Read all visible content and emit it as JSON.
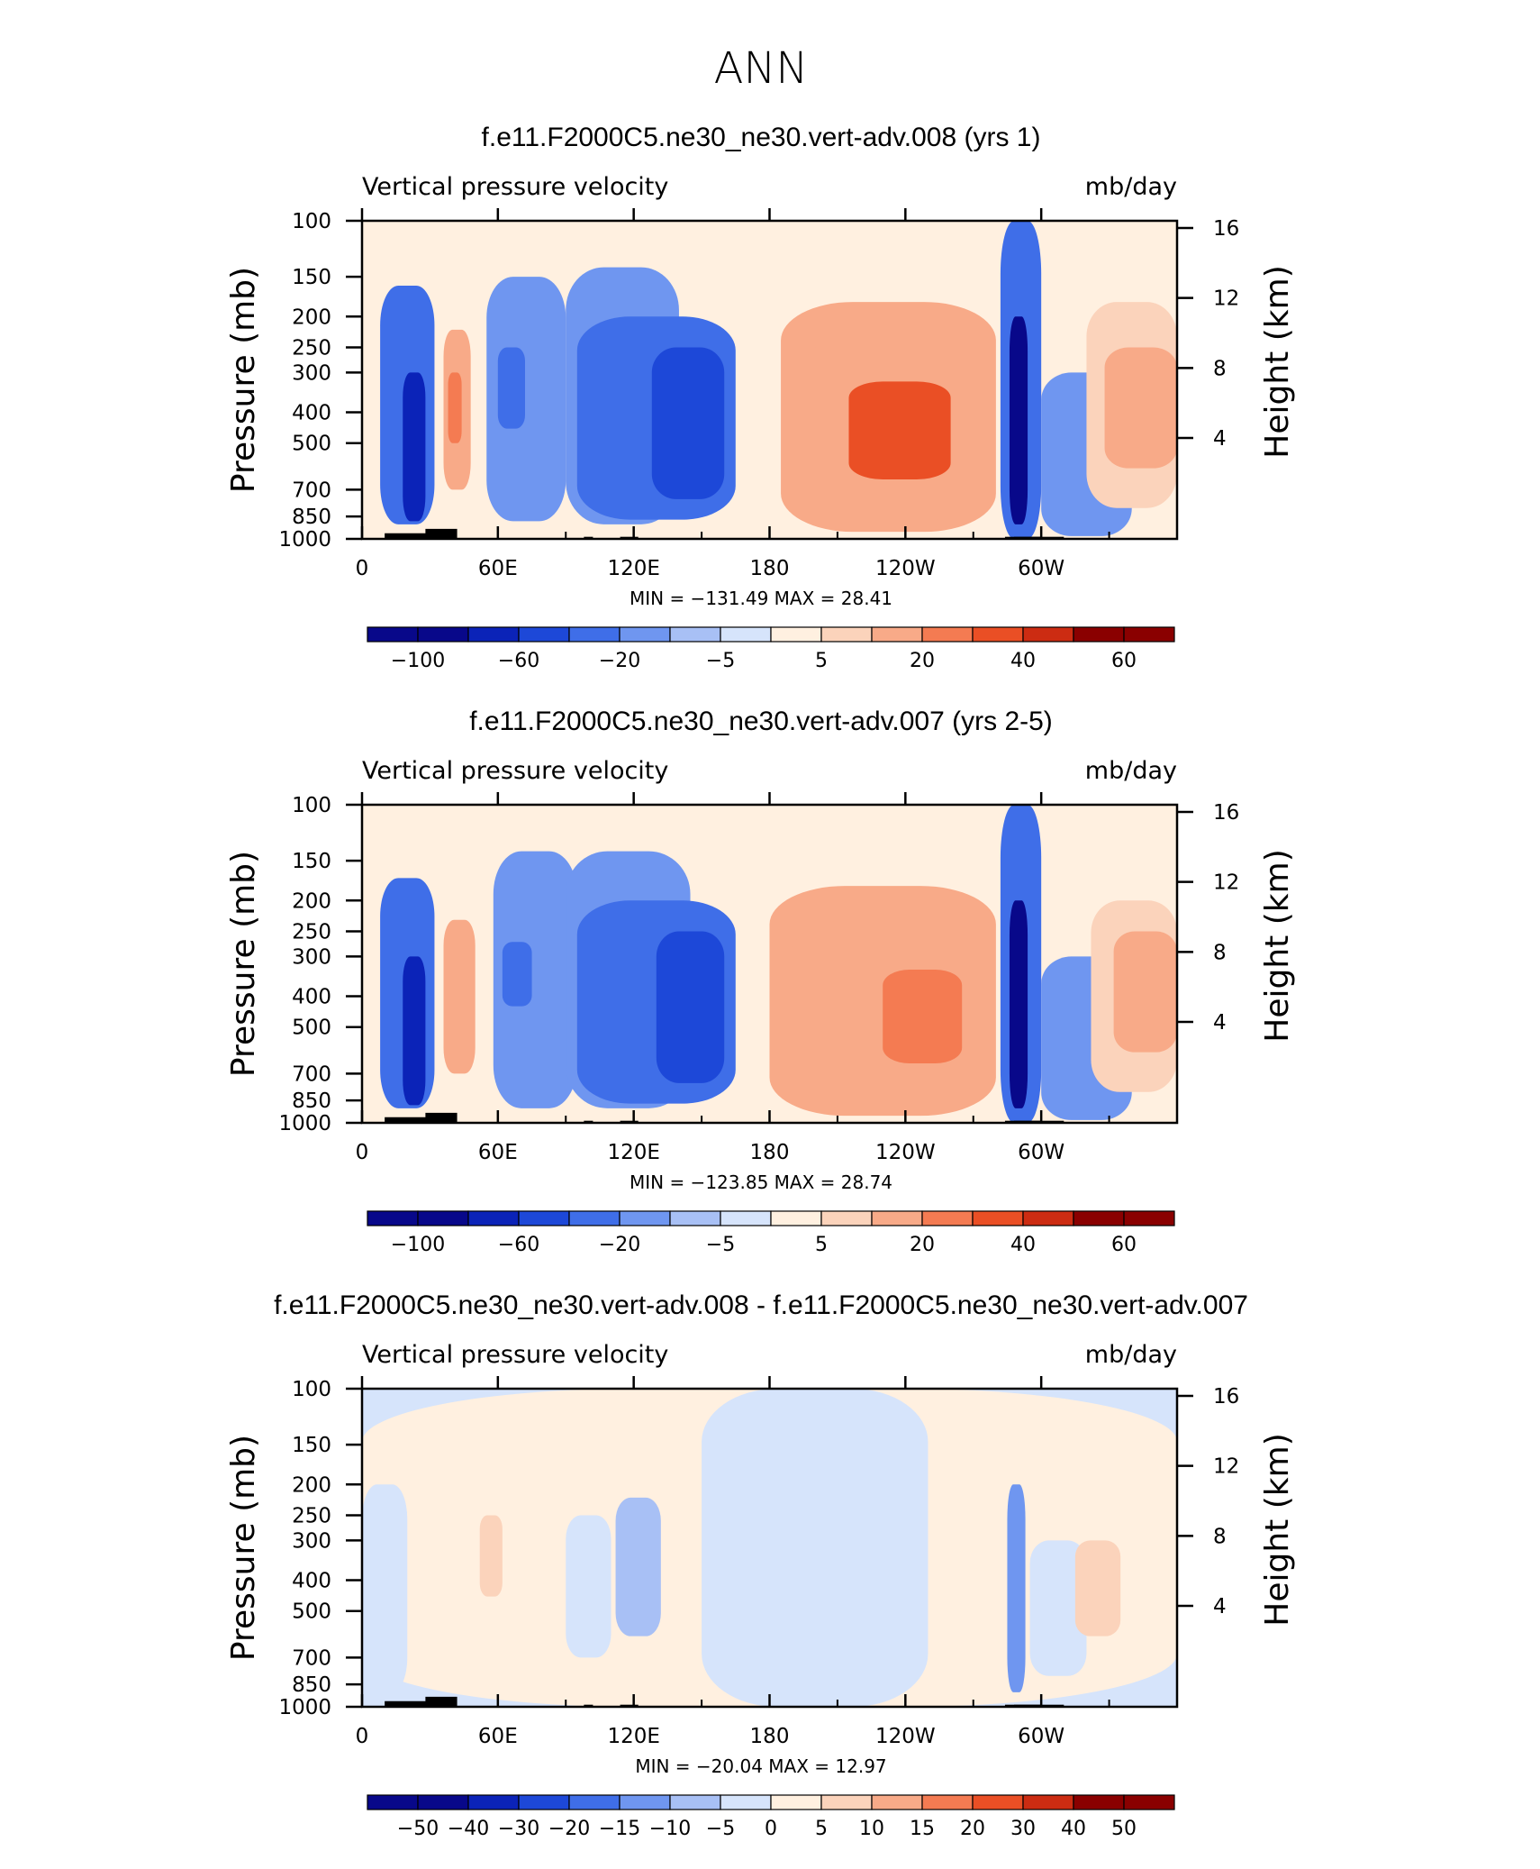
{
  "page_title": "ANN",
  "colors": {
    "negative_scale": [
      "#08088a",
      "#0b23b8",
      "#1d48d8",
      "#3f6ee8",
      "#6f96f0",
      "#a8c0f5",
      "#d6e4fb"
    ],
    "positive_scale": [
      "#fff0e0",
      "#fbd3bb",
      "#f8aa88",
      "#f47b52",
      "#ea4f25",
      "#cc2c12",
      "#8a0000"
    ],
    "topography": "#000000"
  },
  "chart_data": [
    {
      "type": "heatmap",
      "title": "f.e11.F2000C5.ne30_ne30.vert-adv.008 (yrs 1)",
      "subtitle_left": "Vertical pressure velocity",
      "subtitle_right": "mb/day",
      "ylabel": "Pressure (mb)",
      "ylabel_right": "Height (km)",
      "x_ticks": [
        "0",
        "60E",
        "120E",
        "180",
        "120W",
        "60W"
      ],
      "y_ticks": [
        "100",
        "150",
        "200",
        "250",
        "300",
        "400",
        "500",
        "700",
        "850",
        "1000"
      ],
      "y_ticks_right": [
        "16",
        "12",
        "8",
        "4"
      ],
      "y_scale": "log",
      "ylim": [
        1000,
        100
      ],
      "stats": "MIN = −131.49   MAX =   28.41",
      "colorbar_labels": [
        "−100",
        "−60",
        "−20",
        "−5",
        "5",
        "20",
        "40",
        "60"
      ],
      "cells": [
        {
          "lon": [
            8,
            32
          ],
          "p": [
            160,
            900
          ],
          "v": -35
        },
        {
          "lon": [
            18,
            28
          ],
          "p": [
            300,
            880
          ],
          "v": -75
        },
        {
          "lon": [
            36,
            48
          ],
          "p": [
            220,
            700
          ],
          "v": 12
        },
        {
          "lon": [
            38,
            44
          ],
          "p": [
            300,
            500
          ],
          "v": 22
        },
        {
          "lon": [
            55,
            90
          ],
          "p": [
            150,
            880
          ],
          "v": -12
        },
        {
          "lon": [
            60,
            72
          ],
          "p": [
            250,
            450
          ],
          "v": -30
        },
        {
          "lon": [
            90,
            140
          ],
          "p": [
            140,
            900
          ],
          "v": -18
        },
        {
          "lon": [
            95,
            165
          ],
          "p": [
            200,
            870
          ],
          "v": -35
        },
        {
          "lon": [
            128,
            160
          ],
          "p": [
            250,
            750
          ],
          "v": -55
        },
        {
          "lon": [
            185,
            280
          ],
          "p": [
            180,
            950
          ],
          "v": 10
        },
        {
          "lon": [
            195,
            265
          ],
          "p": [
            230,
            900
          ],
          "v": 18
        },
        {
          "lon": [
            215,
            260
          ],
          "p": [
            320,
            650
          ],
          "v": 30
        },
        {
          "lon": [
            282,
            300
          ],
          "p": [
            100,
            1000
          ],
          "v": -30
        },
        {
          "lon": [
            286,
            294
          ],
          "p": [
            200,
            900
          ],
          "v": -90
        },
        {
          "lon": [
            300,
            340
          ],
          "p": [
            300,
            980
          ],
          "v": -15
        },
        {
          "lon": [
            320,
            360
          ],
          "p": [
            180,
            800
          ],
          "v": 8
        },
        {
          "lon": [
            328,
            360
          ],
          "p": [
            250,
            600
          ],
          "v": 16
        }
      ]
    },
    {
      "type": "heatmap",
      "title": "f.e11.F2000C5.ne30_ne30.vert-adv.007 (yrs 2-5)",
      "subtitle_left": "Vertical pressure velocity",
      "subtitle_right": "mb/day",
      "ylabel": "Pressure (mb)",
      "ylabel_right": "Height (km)",
      "x_ticks": [
        "0",
        "60E",
        "120E",
        "180",
        "120W",
        "60W"
      ],
      "y_ticks": [
        "100",
        "150",
        "200",
        "250",
        "300",
        "400",
        "500",
        "700",
        "850",
        "1000"
      ],
      "y_ticks_right": [
        "16",
        "12",
        "8",
        "4"
      ],
      "y_scale": "log",
      "ylim": [
        1000,
        100
      ],
      "stats": "MIN = −123.85   MAX =   28.74",
      "colorbar_labels": [
        "−100",
        "−60",
        "−20",
        "−5",
        "5",
        "20",
        "40",
        "60"
      ],
      "cells": [
        {
          "lon": [
            8,
            32
          ],
          "p": [
            170,
            900
          ],
          "v": -35
        },
        {
          "lon": [
            18,
            28
          ],
          "p": [
            300,
            880
          ],
          "v": -70
        },
        {
          "lon": [
            36,
            50
          ],
          "p": [
            230,
            700
          ],
          "v": 12
        },
        {
          "lon": [
            58,
            95
          ],
          "p": [
            140,
            900
          ],
          "v": -14
        },
        {
          "lon": [
            62,
            75
          ],
          "p": [
            270,
            430
          ],
          "v": -30
        },
        {
          "lon": [
            90,
            145
          ],
          "p": [
            140,
            900
          ],
          "v": -20
        },
        {
          "lon": [
            95,
            165
          ],
          "p": [
            200,
            870
          ],
          "v": -35
        },
        {
          "lon": [
            130,
            160
          ],
          "p": [
            250,
            750
          ],
          "v": -55
        },
        {
          "lon": [
            180,
            280
          ],
          "p": [
            180,
            950
          ],
          "v": 10
        },
        {
          "lon": [
            190,
            270
          ],
          "p": [
            230,
            900
          ],
          "v": 18
        },
        {
          "lon": [
            230,
            265
          ],
          "p": [
            330,
            650
          ],
          "v": 28
        },
        {
          "lon": [
            282,
            300
          ],
          "p": [
            100,
            1000
          ],
          "v": -30
        },
        {
          "lon": [
            286,
            294
          ],
          "p": [
            200,
            900
          ],
          "v": -85
        },
        {
          "lon": [
            300,
            340
          ],
          "p": [
            300,
            980
          ],
          "v": -15
        },
        {
          "lon": [
            322,
            360
          ],
          "p": [
            200,
            800
          ],
          "v": 8
        },
        {
          "lon": [
            332,
            360
          ],
          "p": [
            250,
            600
          ],
          "v": 16
        }
      ]
    },
    {
      "type": "heatmap",
      "title": "f.e11.F2000C5.ne30_ne30.vert-adv.008 - f.e11.F2000C5.ne30_ne30.vert-adv.007",
      "subtitle_left": "Vertical pressure velocity",
      "subtitle_right": "mb/day",
      "ylabel": "Pressure (mb)",
      "ylabel_right": "Height (km)",
      "x_ticks": [
        "0",
        "60E",
        "120E",
        "180",
        "120W",
        "60W"
      ],
      "y_ticks": [
        "100",
        "150",
        "200",
        "250",
        "300",
        "400",
        "500",
        "700",
        "850",
        "1000"
      ],
      "y_ticks_right": [
        "16",
        "12",
        "8",
        "4"
      ],
      "y_scale": "log",
      "ylim": [
        1000,
        100
      ],
      "stats": "MIN = −20.04   MAX =   12.97",
      "colorbar_labels": [
        "−50",
        "−40",
        "−30",
        "−20",
        "−15",
        "−10",
        "−5",
        "0",
        "5",
        "10",
        "15",
        "20",
        "30",
        "40",
        "50"
      ],
      "cells": [
        {
          "lon": [
            0,
            360
          ],
          "p": [
            100,
            1000
          ],
          "v": 0.5
        },
        {
          "lon": [
            0,
            20
          ],
          "p": [
            200,
            900
          ],
          "v": -2
        },
        {
          "lon": [
            40,
            80
          ],
          "p": [
            220,
            700
          ],
          "v": 2
        },
        {
          "lon": [
            52,
            62
          ],
          "p": [
            250,
            450
          ],
          "v": 6
        },
        {
          "lon": [
            90,
            110
          ],
          "p": [
            250,
            700
          ],
          "v": -3
        },
        {
          "lon": [
            112,
            132
          ],
          "p": [
            220,
            600
          ],
          "v": -6
        },
        {
          "lon": [
            150,
            250
          ],
          "p": [
            100,
            1000
          ],
          "v": -2
        },
        {
          "lon": [
            285,
            293
          ],
          "p": [
            200,
            900
          ],
          "v": -12
        },
        {
          "lon": [
            295,
            320
          ],
          "p": [
            300,
            800
          ],
          "v": -2
        },
        {
          "lon": [
            315,
            335
          ],
          "p": [
            300,
            600
          ],
          "v": 5
        }
      ]
    }
  ]
}
